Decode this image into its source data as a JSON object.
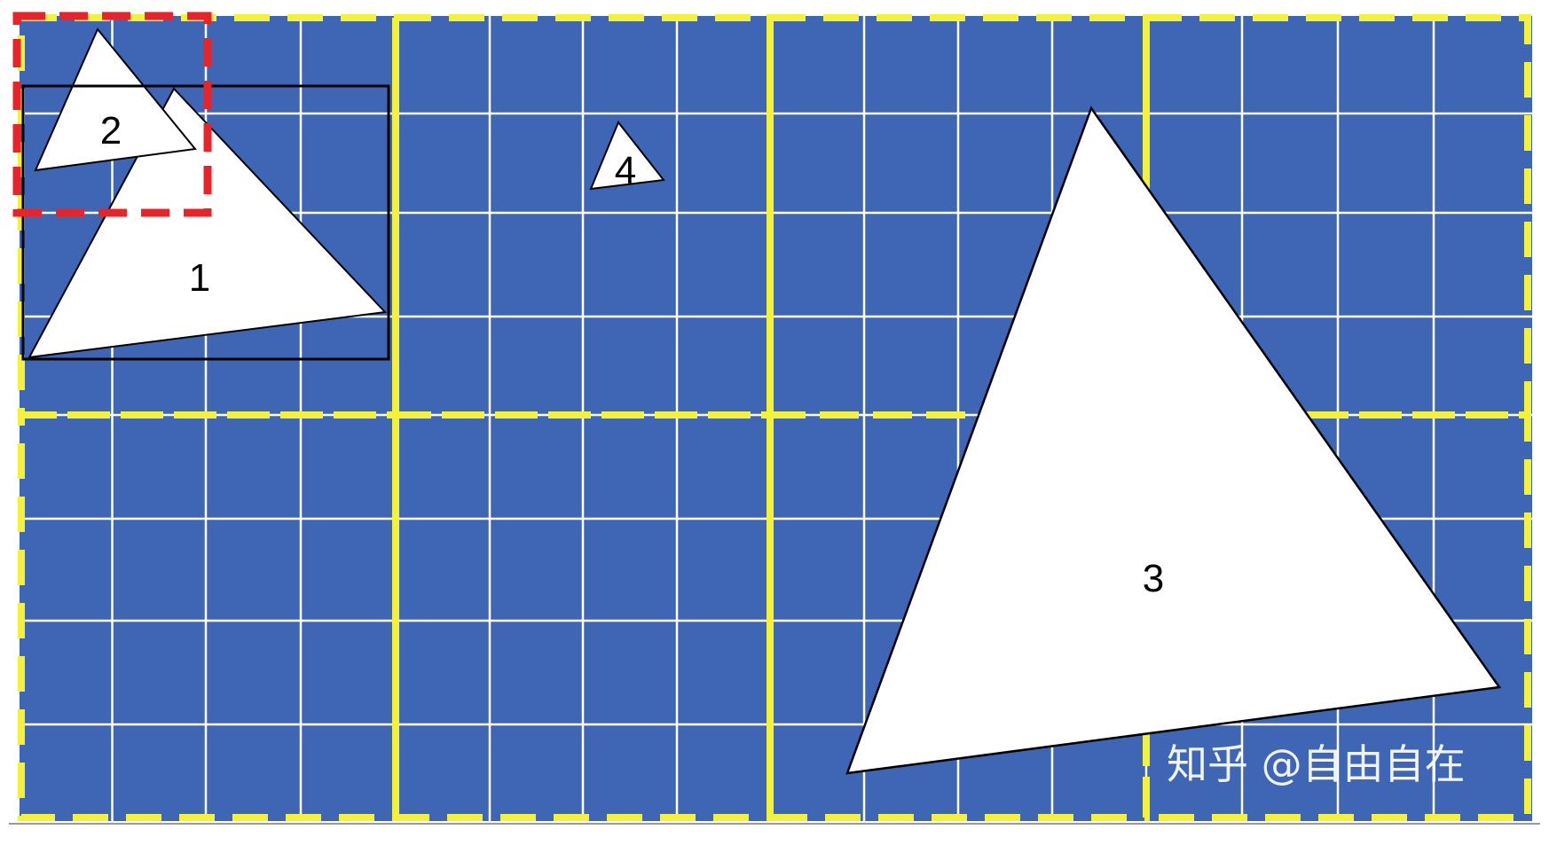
{
  "colors": {
    "background": "#3E66B5",
    "grid_line": "#FFFFFF",
    "tile_border": "#F4F13A",
    "highlight_box": "#E8242B",
    "bounding_box": "#000000",
    "triangle_fill": "#FFFFFF",
    "triangle_stroke": "#000000"
  },
  "triangles": [
    {
      "id": "1",
      "label": "1"
    },
    {
      "id": "2",
      "label": "2"
    },
    {
      "id": "3",
      "label": "3"
    },
    {
      "id": "4",
      "label": "4"
    }
  ],
  "watermark": {
    "text": "知乎 @自由自在"
  }
}
